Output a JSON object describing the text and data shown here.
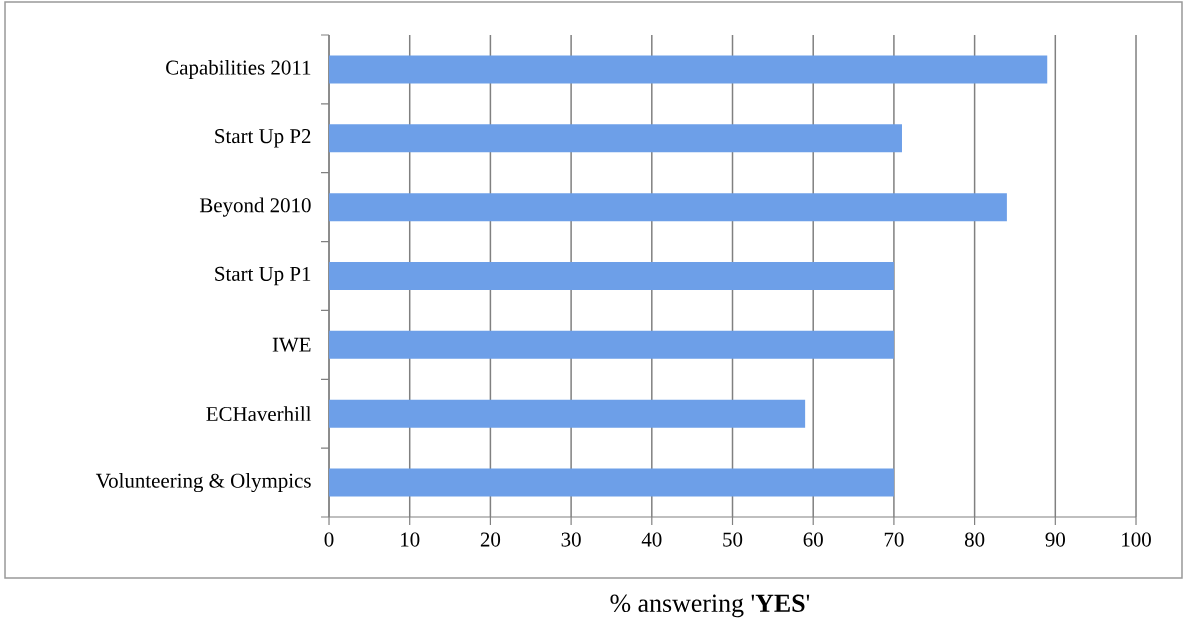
{
  "chart_data": {
    "type": "bar",
    "orientation": "horizontal",
    "categories": [
      "Capabilities 2011",
      "Start Up P2",
      "Beyond 2010",
      "Start Up P1",
      "IWE",
      "ECHaverhill",
      "Volunteering & Olympics"
    ],
    "values": [
      89,
      71,
      84,
      70,
      70,
      59,
      70
    ],
    "color": "#6d9fe8",
    "xlabel": "% answering '**YES**'",
    "xlim": [
      0,
      100
    ],
    "xticks": [
      0,
      10,
      20,
      30,
      40,
      50,
      60,
      70,
      80,
      90,
      100
    ],
    "grid": "x"
  }
}
